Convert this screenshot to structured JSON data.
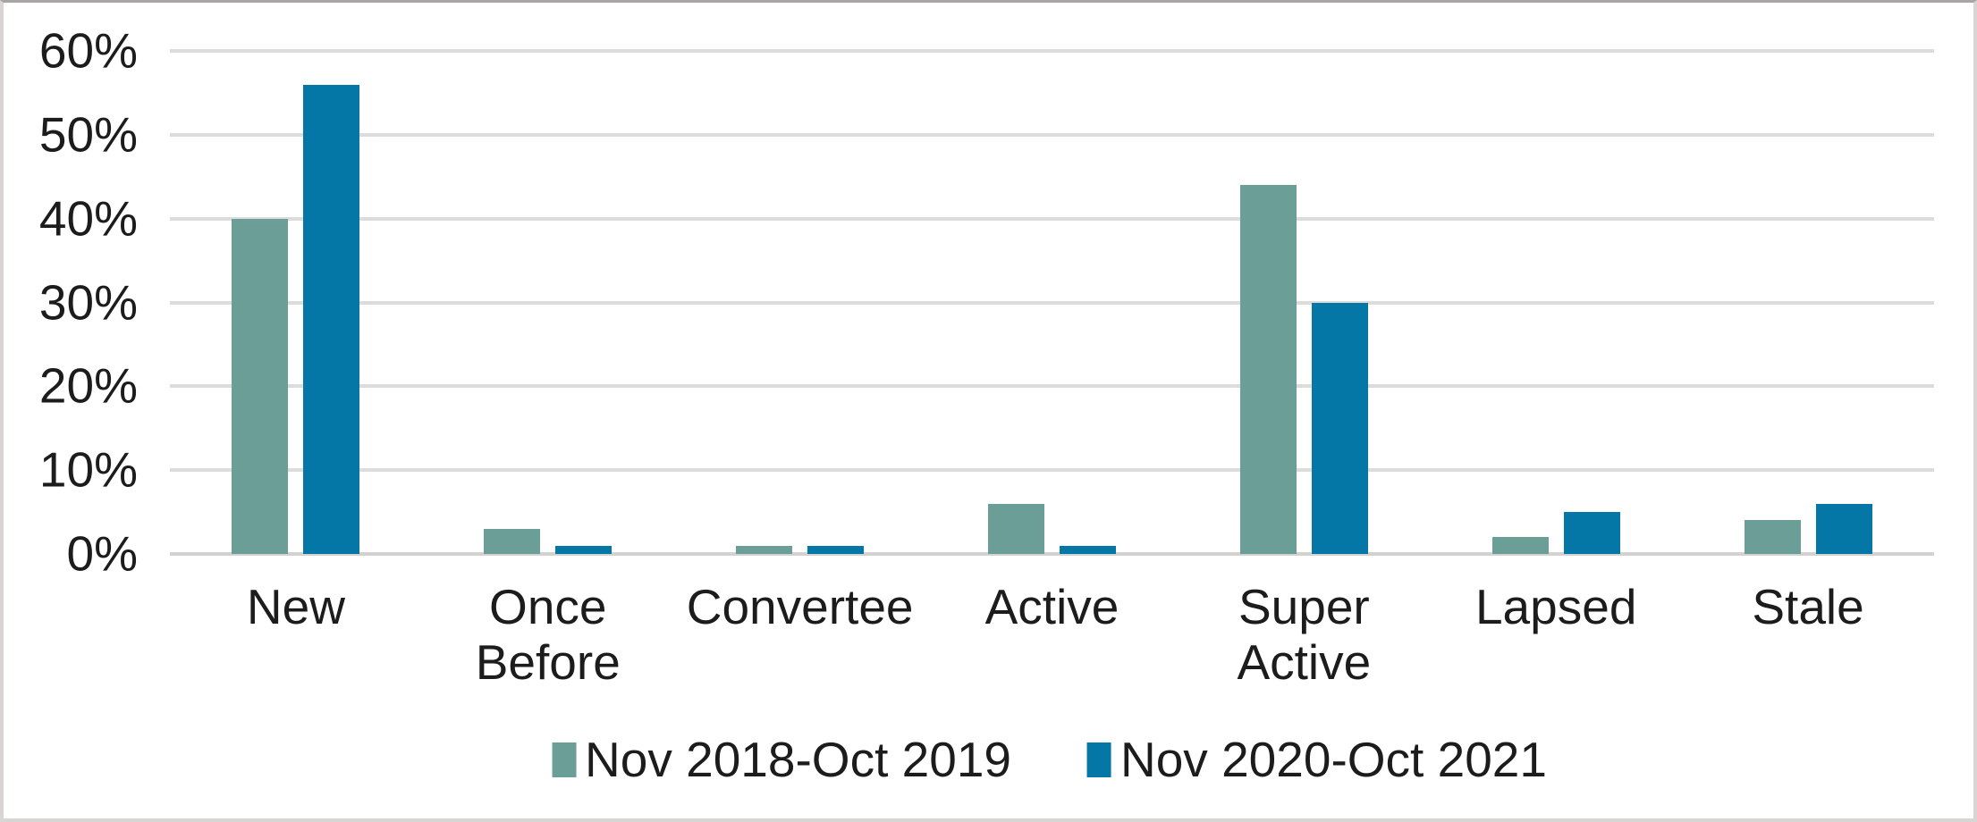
{
  "chart_data": {
    "type": "bar",
    "title": "",
    "xlabel": "",
    "ylabel": "",
    "categories": [
      "New",
      "Once Before",
      "Convertee",
      "Active",
      "Super Active",
      "Lapsed",
      "Stale"
    ],
    "series": [
      {
        "name": "Nov 2018-Oct 2019",
        "color": "#6B9E96",
        "values": [
          40,
          3,
          1,
          6,
          44,
          2,
          4
        ]
      },
      {
        "name": "Nov 2020-Oct 2021",
        "color": "#0577A6",
        "values": [
          56,
          1,
          1,
          1,
          30,
          5,
          6
        ]
      }
    ],
    "ylim": [
      0,
      60
    ],
    "ytick_step": 10,
    "ytick_labels": [
      "0%",
      "10%",
      "20%",
      "30%",
      "40%",
      "50%",
      "60%"
    ],
    "grid": true,
    "legend_position": "bottom"
  },
  "colors": {
    "background": "#FFFFFF",
    "gridline": "#DEDBDB",
    "axis_text": "#1C1C1C",
    "frame_border": "#D9D5D5",
    "series_1": "#6B9E96",
    "series_2": "#0577A6"
  }
}
